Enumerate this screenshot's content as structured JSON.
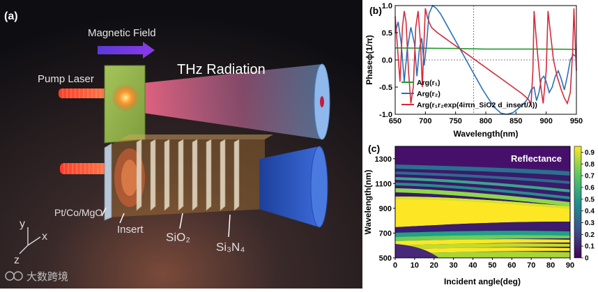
{
  "panel_a": {
    "label": "(a)",
    "magnetic_field": "Magnetic Field",
    "pump_laser": "Pump Laser",
    "thz_radiation": "THz Radiation",
    "layer_ptcomgo": "Pt/Co/MgO",
    "layer_insert": "Insert",
    "layer_sio2": "SiO₂",
    "layer_si3n4": "Si₃N₄",
    "axis_y": "y",
    "axis_x": "x",
    "axis_z": "z",
    "watermark": "大数跨境"
  },
  "panel_b": {
    "label": "(b)",
    "colors": {
      "r1": "#1f9a2a",
      "r2": "#2a6fb8",
      "r1r2": "#d42a3a"
    }
  },
  "panel_c": {
    "label": "(c)",
    "map_title": "Reflectance"
  },
  "chart_data": [
    {
      "type": "line",
      "title": "",
      "xlabel": "Wavelength(nm)",
      "ylabel": "Phaseϕ(1/π)",
      "xlim": [
        650,
        950
      ],
      "ylim": [
        -1.0,
        1.0
      ],
      "xticks": [
        "650",
        "700",
        "750",
        "800",
        "850",
        "900",
        "950"
      ],
      "yticks": [
        "-1.0",
        "-0.5",
        "0.0",
        "0.5",
        "1.0"
      ],
      "crosshair": {
        "x": 780,
        "y": 0.0
      },
      "legend_position": "bottom-left",
      "series": [
        {
          "name": "Arg(r₁)",
          "key": "r1",
          "x": [
            650,
            700,
            750,
            800,
            850,
            900,
            950
          ],
          "y": [
            0.22,
            0.215,
            0.21,
            0.2,
            0.2,
            0.2,
            0.195
          ]
        },
        {
          "name": "Arg(r₂)",
          "key": "r2",
          "x": [
            650,
            655,
            660,
            665,
            670,
            676,
            682,
            686,
            690,
            694,
            698,
            702,
            706,
            712,
            718,
            725,
            735,
            745,
            755,
            765,
            775,
            785,
            795,
            805,
            815,
            825,
            835,
            845,
            855,
            865,
            870,
            875,
            880,
            884,
            888,
            892,
            896,
            900,
            905,
            910,
            915,
            920,
            925,
            930,
            935,
            940,
            945,
            950
          ],
          "y": [
            0.5,
            0.7,
            0.3,
            -0.4,
            0.2,
            0.6,
            0.3,
            -0.3,
            0.2,
            0.4,
            -0.1,
            0.3,
            0.85,
            1.0,
            0.95,
            0.85,
            0.65,
            0.45,
            0.25,
            0.05,
            -0.15,
            -0.35,
            -0.55,
            -0.72,
            -0.88,
            -0.98,
            -1.0,
            -0.97,
            -0.88,
            -0.78,
            -0.7,
            -0.55,
            -0.5,
            -0.75,
            -0.6,
            -0.35,
            -0.3,
            -0.4,
            -0.6,
            -0.5,
            -0.3,
            -0.2,
            -0.35,
            -0.55,
            -0.3,
            0.0,
            0.1,
            0.05
          ]
        },
        {
          "name": "Arg(r₁r₂exp(4iπn_SiO2 d_insert/λ))",
          "key": "r1r2",
          "x": [
            650,
            654,
            658,
            662,
            665,
            668,
            672,
            676,
            680,
            684,
            688,
            692,
            695,
            698,
            700,
            703,
            706,
            710,
            715,
            720,
            730,
            740,
            750,
            760,
            770,
            780,
            790,
            800,
            810,
            820,
            830,
            840,
            850,
            860,
            870,
            875,
            878,
            880,
            882,
            885,
            890,
            895,
            900,
            903,
            905,
            908,
            912,
            918,
            925,
            930,
            935,
            940,
            944,
            946,
            948,
            950
          ],
          "y": [
            0.8,
            0.2,
            -0.4,
            0.6,
            0.9,
            0.7,
            -0.2,
            -0.8,
            -0.5,
            0.6,
            0.9,
            0.3,
            -0.5,
            0.4,
            0.95,
            0.8,
            0.7,
            0.6,
            0.55,
            0.5,
            0.42,
            0.34,
            0.26,
            0.18,
            0.1,
            0.02,
            -0.06,
            -0.14,
            -0.22,
            -0.3,
            -0.38,
            -0.46,
            -0.54,
            -0.62,
            -0.72,
            -0.8,
            -0.2,
            0.9,
            0.6,
            0.2,
            -0.4,
            -0.8,
            -0.2,
            0.9,
            0.7,
            0.4,
            0.0,
            -0.3,
            -0.55,
            -0.7,
            -0.8,
            -0.6,
            0.2,
            0.95,
            0.3,
            -0.2
          ]
        }
      ]
    },
    {
      "type": "heatmap",
      "title": "Reflectance",
      "xlabel": "Incident angle(deg)",
      "ylabel": "Wavelength(nm)",
      "xlim": [
        0,
        90
      ],
      "ylim": [
        500,
        1400
      ],
      "xticks": [
        "0",
        "10",
        "20",
        "30",
        "40",
        "50",
        "60",
        "70",
        "80",
        "90"
      ],
      "yticks": [
        "500",
        "700",
        "900",
        "1100",
        "1300"
      ],
      "colorbar_ticks": [
        "0",
        "0.1",
        "0.2",
        "0.3",
        "0.4",
        "0.5",
        "0.6",
        "0.7",
        "0.8",
        "0.9"
      ],
      "colorbar_range": [
        0,
        0.95
      ]
    }
  ]
}
